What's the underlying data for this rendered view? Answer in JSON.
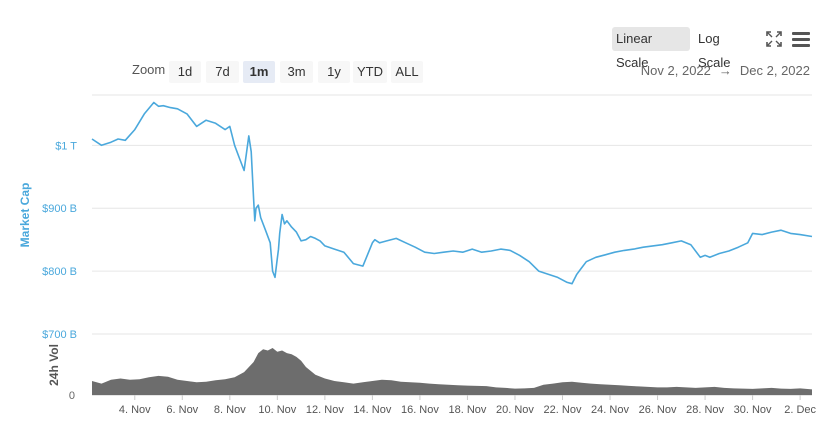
{
  "toolbar": {
    "linear_label": "Linear Scale",
    "log_label": "Log Scale",
    "zoom_label": "Zoom",
    "zoom_options": [
      "1d",
      "7d",
      "1m",
      "3m",
      "1y",
      "YTD",
      "ALL"
    ],
    "zoom_selected": "1m",
    "scale_selected": "Linear Scale",
    "range_start": "Nov 2, 2022",
    "range_arrow": "→",
    "range_end": "Dec 2, 2022",
    "fullscreen_icon": "fullscreen-icon",
    "menu_icon": "hamburger-menu-icon"
  },
  "chart_data": {
    "type": "line",
    "ylabel": "Market Cap",
    "vol_label": "24h Vol",
    "y_ticks": [
      "$1 T",
      "$900 B",
      "$800 B",
      "$700 B"
    ],
    "vol_tick": "0",
    "ylim": [
      700,
      1080
    ],
    "grid": true,
    "x_ticks": [
      "4. Nov",
      "6. Nov",
      "8. Nov",
      "10. Nov",
      "12. Nov",
      "14. Nov",
      "16. Nov",
      "18. Nov",
      "20. Nov",
      "22. Nov",
      "24. Nov",
      "26. Nov",
      "28. Nov",
      "30. Nov",
      "2. Dec"
    ],
    "x_tick_days": [
      4,
      6,
      8,
      10,
      12,
      14,
      16,
      18,
      20,
      22,
      24,
      26,
      28,
      30,
      32
    ],
    "x_range_days": [
      2.2,
      32.5
    ],
    "colors": {
      "line": "#4aa8dc",
      "volume": "#6d6d6d",
      "axis_label": "#4aa8dc"
    },
    "series": [
      {
        "values_unit": "billion USD",
        "x": [
          2.2,
          2.6,
          3.0,
          3.3,
          3.6,
          4.0,
          4.4,
          4.8,
          5.0,
          5.2,
          5.5,
          5.8,
          6.2,
          6.6,
          7.0,
          7.4,
          7.8,
          8.0,
          8.2,
          8.4,
          8.6,
          8.8,
          8.9,
          9.0,
          9.05,
          9.1,
          9.2,
          9.3,
          9.5,
          9.7,
          9.8,
          9.9,
          10.0,
          10.05,
          10.1,
          10.2,
          10.3,
          10.4,
          10.6,
          10.8,
          11.0,
          11.2,
          11.4,
          11.6,
          11.8,
          12.0,
          12.4,
          12.8,
          13.2,
          13.6,
          14.0,
          14.1,
          14.3,
          14.6,
          15.0,
          15.4,
          15.8,
          16.2,
          16.6,
          17.0,
          17.4,
          17.8,
          18.2,
          18.6,
          19.0,
          19.4,
          19.8,
          20.2,
          20.6,
          21.0,
          21.4,
          21.8,
          22.2,
          22.4,
          22.6,
          22.8,
          23.0,
          23.4,
          23.8,
          24.2,
          24.6,
          25.0,
          25.4,
          25.8,
          26.2,
          26.6,
          27.0,
          27.4,
          27.8,
          28.0,
          28.2,
          28.6,
          29.0,
          29.4,
          29.8,
          30.0,
          30.4,
          30.8,
          31.2,
          31.6,
          32.0,
          32.5
        ],
        "y": [
          1010,
          1000,
          1005,
          1010,
          1008,
          1025,
          1050,
          1068,
          1062,
          1063,
          1060,
          1058,
          1050,
          1030,
          1040,
          1035,
          1025,
          1030,
          1000,
          980,
          960,
          1015,
          990,
          915,
          880,
          900,
          905,
          885,
          865,
          845,
          800,
          790,
          820,
          835,
          860,
          890,
          875,
          880,
          870,
          862,
          848,
          850,
          855,
          852,
          848,
          840,
          835,
          830,
          812,
          808,
          845,
          850,
          845,
          848,
          852,
          845,
          838,
          830,
          828,
          830,
          832,
          830,
          835,
          830,
          832,
          835,
          833,
          825,
          815,
          800,
          795,
          790,
          782,
          780,
          795,
          805,
          815,
          822,
          826,
          830,
          833,
          835,
          838,
          840,
          842,
          845,
          848,
          842,
          822,
          825,
          822,
          828,
          832,
          838,
          845,
          860,
          858,
          862,
          865,
          860,
          858,
          855
        ]
      }
    ],
    "volume": {
      "values_unit": "billion USD",
      "ylim": [
        0,
        240
      ],
      "x": [
        2.2,
        2.6,
        3.0,
        3.4,
        3.8,
        4.2,
        4.6,
        5.0,
        5.4,
        5.8,
        6.2,
        6.6,
        7.0,
        7.4,
        7.8,
        8.2,
        8.6,
        9.0,
        9.2,
        9.4,
        9.6,
        9.8,
        10.0,
        10.2,
        10.4,
        10.6,
        10.8,
        11.0,
        11.2,
        11.6,
        12.0,
        12.4,
        12.8,
        13.2,
        13.6,
        14.0,
        14.4,
        14.8,
        15.2,
        15.6,
        16.0,
        16.4,
        16.8,
        17.2,
        17.6,
        18.0,
        18.4,
        18.8,
        19.2,
        19.6,
        20.0,
        20.4,
        20.8,
        21.2,
        21.6,
        22.0,
        22.4,
        22.8,
        23.2,
        23.6,
        24.0,
        24.4,
        24.8,
        25.2,
        25.6,
        26.0,
        26.4,
        26.8,
        27.2,
        27.6,
        28.0,
        28.4,
        28.8,
        29.2,
        29.6,
        30.0,
        30.4,
        30.8,
        31.2,
        31.6,
        32.0,
        32.5
      ],
      "values": [
        55,
        45,
        60,
        65,
        60,
        62,
        70,
        75,
        72,
        60,
        55,
        50,
        52,
        58,
        62,
        70,
        90,
        130,
        165,
        180,
        175,
        185,
        170,
        175,
        165,
        160,
        150,
        135,
        110,
        80,
        65,
        55,
        50,
        45,
        50,
        55,
        60,
        58,
        52,
        50,
        48,
        45,
        42,
        40,
        38,
        37,
        36,
        35,
        30,
        28,
        25,
        26,
        28,
        40,
        45,
        50,
        52,
        48,
        45,
        42,
        40,
        38,
        36,
        34,
        32,
        30,
        30,
        32,
        30,
        28,
        30,
        32,
        28,
        26,
        25,
        24,
        26,
        28,
        25,
        24,
        26,
        22
      ]
    }
  }
}
